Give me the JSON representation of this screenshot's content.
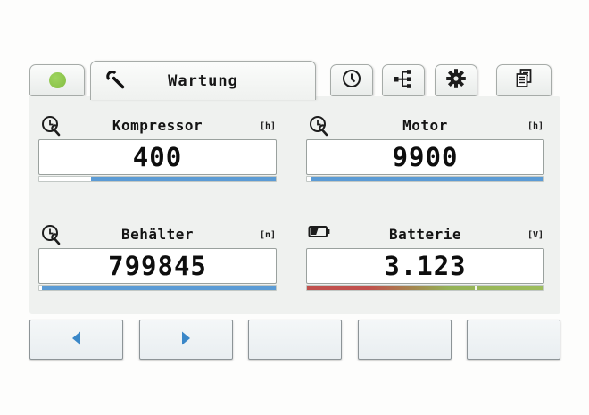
{
  "window": {
    "background": "#fdfdfc",
    "content_background": "#eff1ef"
  },
  "tabs": {
    "status_tab": {
      "icon": "status-dot",
      "dot_color": "#8cc74b"
    },
    "active_tab": {
      "label": "Wartung",
      "icon": "wrench-icon"
    },
    "icon_tabs": [
      {
        "id": "history",
        "icon": "clock-icon"
      },
      {
        "id": "network",
        "icon": "network-icon"
      },
      {
        "id": "settings",
        "icon": "gear-icon"
      },
      {
        "id": "reports",
        "icon": "copy-icon"
      }
    ]
  },
  "panels": [
    {
      "label": "Kompressor",
      "unit": "[h]",
      "value": "400",
      "icon": "service-clock-icon",
      "bar": {
        "fill_percent": 78,
        "color": "#5b9bd5",
        "anchor": "right"
      }
    },
    {
      "label": "Motor",
      "unit": "[h]",
      "value": "9900",
      "icon": "service-clock-icon",
      "bar": {
        "fill_percent": 98.5,
        "color": "#5b9bd5",
        "anchor": "right"
      }
    },
    {
      "label": "Behälter",
      "unit": "[n]",
      "value": "799845",
      "icon": "service-clock-icon",
      "bar": {
        "fill_percent": 99,
        "color": "#5b9bd5",
        "anchor": "right"
      }
    },
    {
      "label": "Batterie",
      "unit": "[V]",
      "value": "3.123",
      "icon": "battery-icon",
      "bar": {
        "fill_percent": 100,
        "gradient": [
          "#c0504d 0%",
          "#c0504d 26%",
          "#a3874f 45%",
          "#94b257 60%",
          "#9dbd5c 100%"
        ],
        "marker_percent": 71,
        "marker_color": "#ffffff"
      }
    }
  ],
  "footer": {
    "buttons": [
      {
        "icon": "arrow-left-icon"
      },
      {
        "icon": "arrow-right-icon"
      },
      {
        "icon": ""
      },
      {
        "icon": ""
      },
      {
        "icon": ""
      }
    ]
  },
  "colors": {
    "accent_blue": "#5b9bd5",
    "arrow_blue": "#3a87c8",
    "status_green": "#8cc74b",
    "bar_red": "#c0504d",
    "bar_green": "#9dbd5c"
  }
}
